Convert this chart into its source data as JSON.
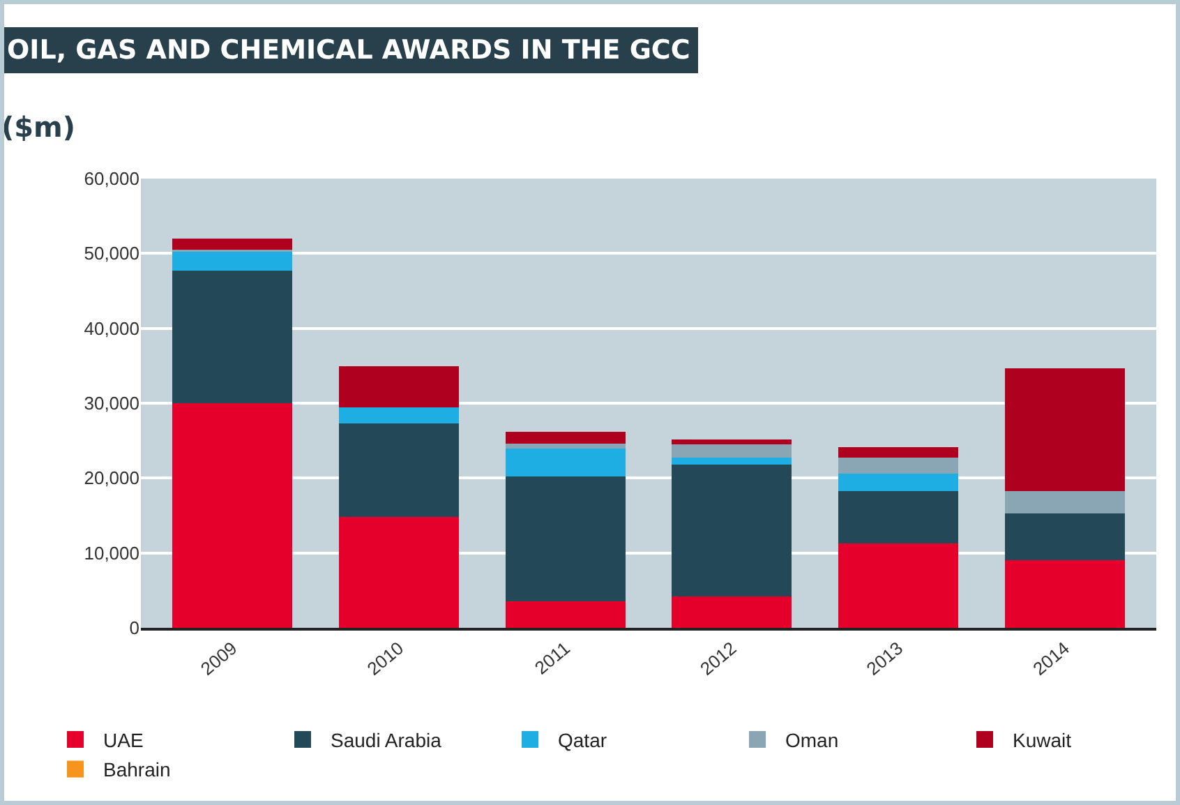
{
  "chart_data": {
    "type": "bar",
    "title": "OIL, GAS AND CHEMICAL AWARDS IN THE GCC",
    "ylabel": "($m)",
    "categories": [
      "2009",
      "2010",
      "2011",
      "2012",
      "2013",
      "2014"
    ],
    "stacked": true,
    "series": [
      {
        "name": "UAE",
        "color": "#e4002b",
        "values": [
          30000,
          14800,
          3500,
          4200,
          11300,
          9000
        ]
      },
      {
        "name": "Saudi Arabia",
        "color": "#234959",
        "values": [
          17700,
          12500,
          16700,
          17600,
          7000,
          6300
        ]
      },
      {
        "name": "Qatar",
        "color": "#1eaee4",
        "values": [
          2500,
          2100,
          3700,
          900,
          2300,
          0
        ]
      },
      {
        "name": "Oman",
        "color": "#8aa5b4",
        "values": [
          300,
          0,
          700,
          1800,
          2100,
          3000
        ]
      },
      {
        "name": "Kuwait",
        "color": "#b0001f",
        "values": [
          1500,
          5500,
          1600,
          700,
          1400,
          16400
        ]
      },
      {
        "name": "Bahrain",
        "color": "#f7941d",
        "values": [
          0,
          0,
          0,
          0,
          0,
          0
        ]
      }
    ],
    "ylim": [
      0,
      60000
    ],
    "yticks": [
      {
        "value": 0,
        "label": "0"
      },
      {
        "value": 10000,
        "label": "10,000"
      },
      {
        "value": 20000,
        "label": "20,000"
      },
      {
        "value": 30000,
        "label": "30,000"
      },
      {
        "value": 40000,
        "label": "40,000"
      },
      {
        "value": 50000,
        "label": "50,000"
      },
      {
        "value": 60000,
        "label": "60,000"
      }
    ],
    "grid": "y",
    "legend": "bottom"
  }
}
